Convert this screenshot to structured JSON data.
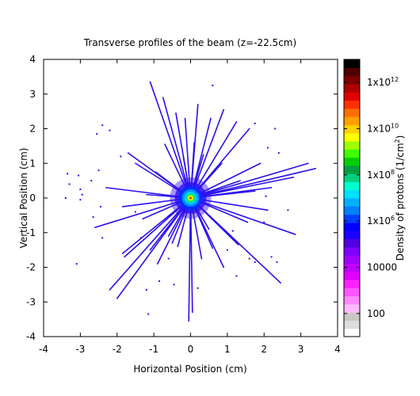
{
  "chart_data": {
    "type": "heatmap",
    "title": "Transverse  profiles of the beam (z=-22.5cm)",
    "xlabel": "Horizontal Position (cm)",
    "ylabel": "Vertical Position (cm)",
    "xlim": [
      -4,
      4
    ],
    "ylim": [
      -4,
      4
    ],
    "x_ticks": [
      "-4",
      "-3",
      "-2",
      "-1",
      "0",
      "1",
      "2",
      "3",
      "4"
    ],
    "y_ticks": [
      "-4",
      "-3",
      "-2",
      "-1",
      "0",
      "1",
      "2",
      "3",
      "4"
    ],
    "grid": false,
    "beam_center": [
      0.0,
      0.0
    ],
    "colorbar": {
      "label": "Density of protons (1/cm",
      "label_sup": "2",
      "label_end": ")",
      "scale": "log",
      "range": [
        10,
        10000000000000.0
      ],
      "ticks": [
        {
          "value": 100,
          "base": "100",
          "exp": ""
        },
        {
          "value": 10000,
          "base": "10000",
          "exp": ""
        },
        {
          "value": 1000000.0,
          "base": "1x10",
          "exp": "6"
        },
        {
          "value": 100000000.0,
          "base": "1x10",
          "exp": "8"
        },
        {
          "value": 10000000000.0,
          "base": "1x10",
          "exp": "10"
        },
        {
          "value": 1000000000000.0,
          "base": "1x10",
          "exp": "12"
        }
      ],
      "colors": [
        "#ffffff",
        "#dcdcdc",
        "#c8c8c8",
        "#ffbbff",
        "#ff88ff",
        "#ff55ff",
        "#ff22ff",
        "#e000ff",
        "#c000ff",
        "#a000ff",
        "#8000ff",
        "#5000e0",
        "#2000ff",
        "#0000ff",
        "#0040ff",
        "#0080ff",
        "#00b0ff",
        "#00e0ff",
        "#00ffd0",
        "#00d080",
        "#00a040",
        "#00d000",
        "#40ff00",
        "#a0ff00",
        "#ffff00",
        "#ffd000",
        "#ffa000",
        "#ff7000",
        "#ff3000",
        "#e00000",
        "#b00000",
        "#800000",
        "#500000",
        "#000000"
      ]
    },
    "streaks": [
      [
        -1.1,
        3.35
      ],
      [
        -0.75,
        2.9
      ],
      [
        -0.4,
        2.45
      ],
      [
        -0.15,
        2.3
      ],
      [
        0.2,
        2.7
      ],
      [
        0.55,
        2.3
      ],
      [
        0.9,
        2.55
      ],
      [
        1.25,
        2.2
      ],
      [
        1.6,
        2.0
      ],
      [
        -1.7,
        1.3
      ],
      [
        -1.5,
        1.0
      ],
      [
        1.9,
        1.0
      ],
      [
        3.2,
        1.0
      ],
      [
        3.4,
        0.85
      ],
      [
        2.8,
        0.6
      ],
      [
        -2.3,
        0.3
      ],
      [
        2.2,
        0.3
      ],
      [
        -2.6,
        -0.85
      ],
      [
        -1.85,
        -0.25
      ],
      [
        2.1,
        -0.35
      ],
      [
        2.85,
        -1.05
      ],
      [
        -2.2,
        -2.65
      ],
      [
        -2.0,
        -2.9
      ],
      [
        -1.8,
        -1.7
      ],
      [
        -1.85,
        -1.6
      ],
      [
        -0.9,
        -1.9
      ],
      [
        -1.1,
        -1.5
      ],
      [
        2.45,
        -2.45
      ],
      [
        1.3,
        -1.35
      ],
      [
        -0.05,
        -3.55
      ],
      [
        0.05,
        -3.3
      ],
      [
        0.9,
        -2.0
      ],
      [
        0.6,
        -1.45
      ],
      [
        -0.5,
        -1.3
      ],
      [
        -0.7,
        1.55
      ],
      [
        1.35,
        0.5
      ],
      [
        -1.3,
        -0.6
      ],
      [
        1.55,
        -0.7
      ],
      [
        0.35,
        1.25
      ],
      [
        -0.35,
        -1.4
      ],
      [
        0.85,
        1.0
      ],
      [
        -0.95,
        0.75
      ],
      [
        0.3,
        -1.75
      ],
      [
        -0.6,
        -1.1
      ],
      [
        1.75,
        0.2
      ],
      [
        -1.2,
        0.1
      ],
      [
        0.1,
        1.6
      ],
      [
        -0.2,
        1.2
      ],
      [
        0.5,
        -0.9
      ],
      [
        1.1,
        -1.1
      ]
    ],
    "scattered_points": [
      [
        0.6,
        3.25
      ],
      [
        -2.4,
        2.1
      ],
      [
        -2.55,
        1.85
      ],
      [
        -2.2,
        1.95
      ],
      [
        -3.05,
        0.65
      ],
      [
        -3.35,
        0.7
      ],
      [
        -3.4,
        0.0
      ],
      [
        -3.0,
        -0.05
      ],
      [
        -3.0,
        0.25
      ],
      [
        -2.5,
        0.8
      ],
      [
        -2.45,
        -0.25
      ],
      [
        -3.1,
        -1.9
      ],
      [
        -2.4,
        -1.15
      ],
      [
        -1.2,
        -2.65
      ],
      [
        -1.15,
        -3.35
      ],
      [
        -0.6,
        -1.75
      ],
      [
        -0.85,
        -2.4
      ],
      [
        1.25,
        -2.25
      ],
      [
        1.0,
        -1.5
      ],
      [
        1.6,
        -1.75
      ],
      [
        1.75,
        -1.85
      ],
      [
        2.2,
        -1.7
      ],
      [
        2.35,
        -1.85
      ],
      [
        2.3,
        2.0
      ],
      [
        2.1,
        1.45
      ],
      [
        2.4,
        1.3
      ],
      [
        2.05,
        0.05
      ],
      [
        2.65,
        -0.35
      ],
      [
        1.15,
        -0.95
      ],
      [
        -1.35,
        -1.15
      ],
      [
        -1.5,
        -0.4
      ],
      [
        -3.3,
        0.4
      ],
      [
        -2.7,
        0.5
      ],
      [
        -1.9,
        1.2
      ],
      [
        2.0,
        -0.7
      ],
      [
        1.75,
        2.15
      ],
      [
        -0.45,
        -2.5
      ],
      [
        0.2,
        -2.6
      ],
      [
        -2.65,
        -0.55
      ],
      [
        -2.95,
        0.1
      ]
    ]
  }
}
